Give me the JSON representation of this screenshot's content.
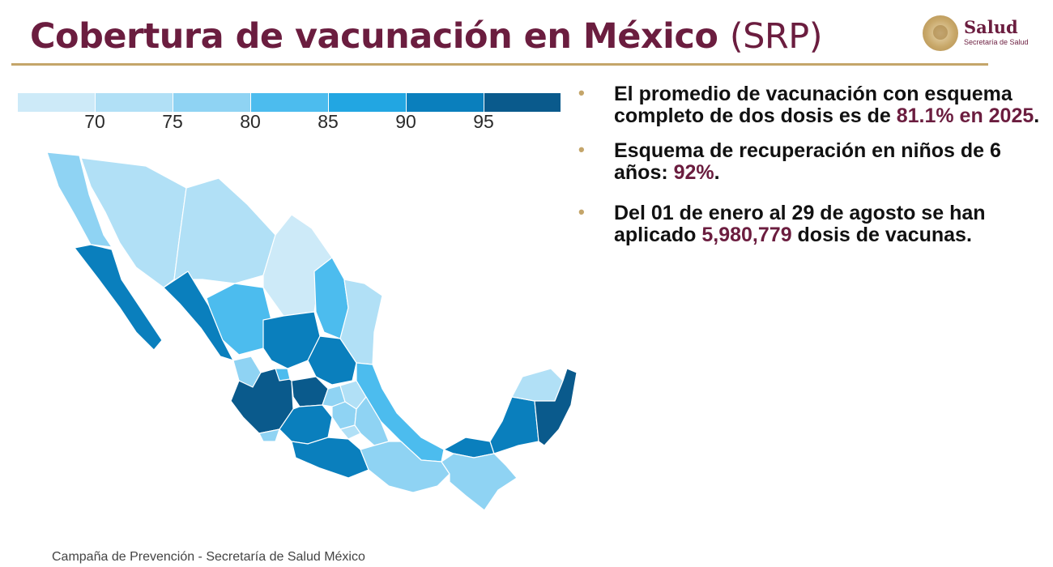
{
  "header": {
    "title": "Cobertura de vacunación en México",
    "title_suffix": "(SRP)"
  },
  "logo": {
    "name": "Salud",
    "subtitle": "Secretaría de Salud"
  },
  "legend": {
    "ticks": [
      "70",
      "75",
      "80",
      "85",
      "90",
      "95"
    ],
    "colors": [
      "#cdeaf8",
      "#b1e0f6",
      "#8fd3f3",
      "#4cbcee",
      "#22a6e2",
      "#0a7fbd",
      "#0a5a8c"
    ]
  },
  "bullets": [
    {
      "text_before": "El promedio de vacunación con esquema completo de dos dosis es de ",
      "highlight": "81.1% en 2025",
      "text_after": "."
    },
    {
      "text_before": "Esquema de recuperación en niños de 6 años: ",
      "highlight": "92%",
      "text_after": "."
    },
    {
      "text_before": "Del 01 de enero al 29 de agosto se han aplicado ",
      "highlight": "5,980,779",
      "text_after": " dosis de vacunas."
    }
  ],
  "footer": {
    "text": "Campaña de Prevención - Secretaría de Salud México"
  },
  "colors": {
    "brand": "#6b1d3f",
    "accent_gold": "#c4a56a"
  }
}
